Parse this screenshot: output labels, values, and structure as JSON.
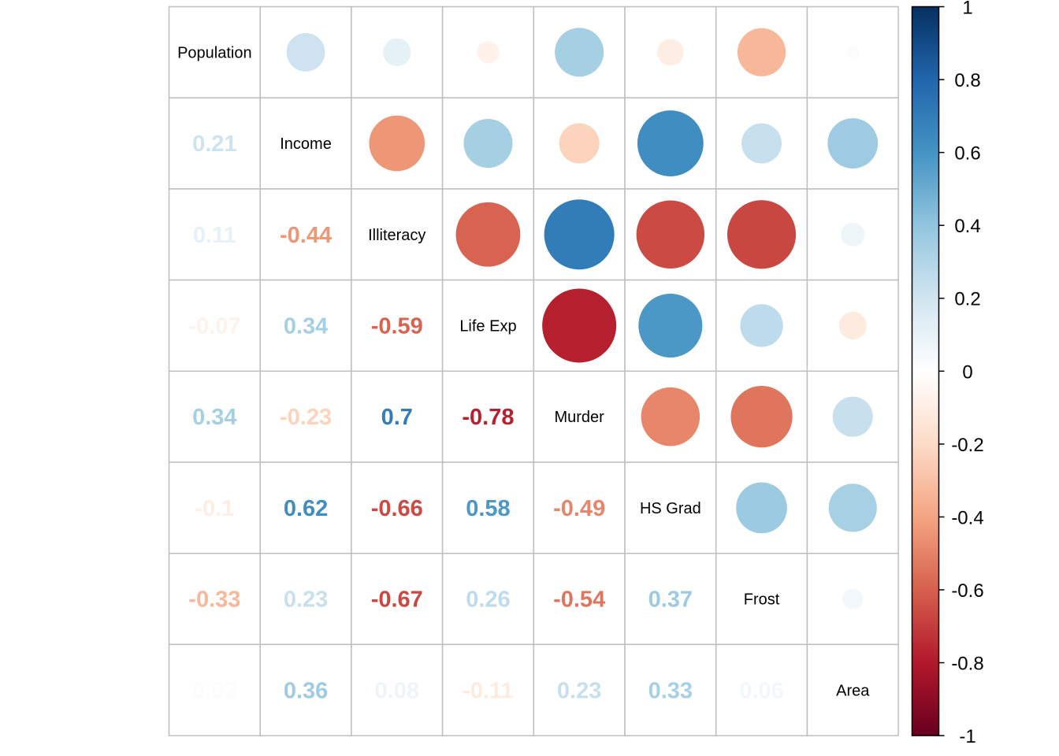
{
  "chart_data": {
    "type": "heatmap",
    "variables": [
      "Population",
      "Income",
      "Illiteracy",
      "Life Exp",
      "Murder",
      "HS Grad",
      "Frost",
      "Area"
    ],
    "matrix": [
      [
        1,
        0.21,
        0.11,
        -0.07,
        0.34,
        -0.1,
        -0.33,
        0.02
      ],
      [
        0.21,
        1,
        -0.44,
        0.34,
        -0.23,
        0.62,
        0.23,
        0.36
      ],
      [
        0.11,
        -0.44,
        1,
        -0.59,
        0.7,
        -0.66,
        -0.67,
        0.08
      ],
      [
        -0.07,
        0.34,
        -0.59,
        1,
        -0.78,
        0.58,
        0.26,
        -0.11
      ],
      [
        0.34,
        -0.23,
        0.7,
        -0.78,
        1,
        -0.49,
        -0.54,
        0.23
      ],
      [
        -0.1,
        0.62,
        -0.66,
        0.58,
        -0.49,
        1,
        0.37,
        0.33
      ],
      [
        -0.33,
        0.23,
        -0.67,
        0.26,
        -0.54,
        0.37,
        1,
        0.06
      ],
      [
        0.02,
        0.36,
        0.08,
        -0.11,
        0.23,
        0.33,
        0.06,
        1
      ]
    ],
    "upper_triangle": "circle",
    "lower_triangle": "number",
    "diagonal": "variable names",
    "colorbar": {
      "range": [
        -1,
        1
      ],
      "ticks": [
        1,
        0.8,
        0.6,
        0.4,
        0.2,
        0,
        -0.2,
        -0.4,
        -0.6,
        -0.8,
        -1
      ],
      "tick_labels": [
        "1",
        "0.8",
        "0.6",
        "0.4",
        "0.2",
        "0",
        "-0.2",
        "-0.4",
        "-0.6",
        "-0.8",
        "-1"
      ]
    },
    "colors": {
      "negative_end": "#67001F",
      "positive_end": "#053061",
      "midpoint": "#FFFFFF",
      "grid": "#BEBEBE"
    }
  }
}
